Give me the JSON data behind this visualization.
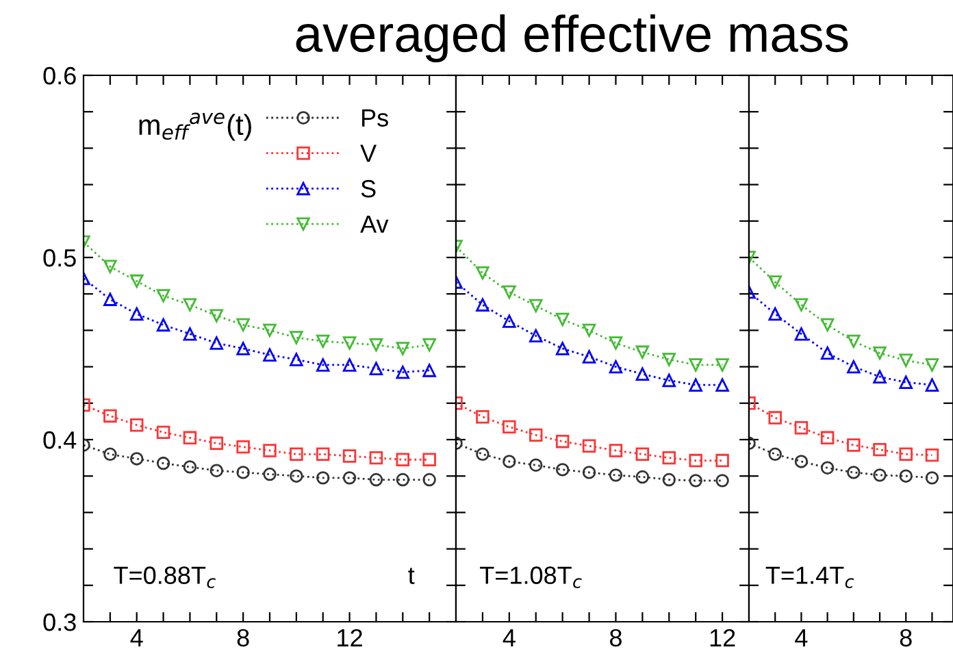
{
  "chart_data": [
    {
      "type": "line",
      "title": "averaged effective mass",
      "x": [
        2,
        3,
        4,
        5,
        6,
        7,
        8,
        9,
        10,
        11,
        12,
        13,
        14,
        15
      ],
      "xlim": [
        2,
        16
      ],
      "ylim": [
        0.3,
        0.6
      ],
      "xticks": [
        {
          "value": 3,
          "label": null
        },
        4,
        {
          "value": 5,
          "label": null
        },
        {
          "value": 6,
          "label": null
        },
        {
          "value": 7,
          "label": null
        },
        8,
        {
          "value": 9,
          "label": null
        },
        {
          "value": 10,
          "label": null
        },
        {
          "value": 11,
          "label": null
        },
        12,
        {
          "value": 13,
          "label": null
        },
        {
          "value": 14,
          "label": null
        },
        {
          "value": 15,
          "label": null
        }
      ],
      "yticks": [
        0.3,
        {
          "value": 0.32,
          "label": null
        },
        {
          "value": 0.34,
          "label": null
        },
        {
          "value": 0.36,
          "label": null
        },
        {
          "value": 0.38,
          "label": null
        },
        0.4,
        {
          "value": 0.42,
          "label": null
        },
        {
          "value": 0.44,
          "label": null
        },
        {
          "value": 0.46,
          "label": null
        },
        {
          "value": 0.48,
          "label": null
        },
        0.5,
        {
          "value": 0.52,
          "label": null
        },
        {
          "value": 0.54,
          "label": null
        },
        {
          "value": 0.56,
          "label": null
        },
        {
          "value": 0.58,
          "label": null
        },
        0.6
      ],
      "legend": "top right",
      "line_style": "dotted",
      "grid": false,
      "annotations": [
        {
          "text": "m$_{eff}$$^{ave}$(t)"
        },
        {
          "text": "T=0.88T$_{c}$"
        },
        {
          "text": "t"
        }
      ],
      "series": [
        {
          "name": "Ps",
          "color": "#333333",
          "marker": "circle",
          "values": [
            0.397,
            0.392,
            0.3895,
            0.387,
            0.385,
            0.383,
            0.382,
            0.381,
            0.38,
            0.379,
            0.379,
            0.378,
            0.378,
            0.378
          ]
        },
        {
          "name": "V",
          "color": "#ff3333",
          "marker": "square",
          "values": [
            0.419,
            0.413,
            0.408,
            0.404,
            0.401,
            0.398,
            0.396,
            0.394,
            0.392,
            0.392,
            0.391,
            0.39,
            0.389,
            0.389
          ]
        },
        {
          "name": "S",
          "color": "#0000ff",
          "marker": "triangle",
          "values": [
            0.4885,
            0.477,
            0.469,
            0.463,
            0.458,
            0.453,
            0.45,
            0.4465,
            0.444,
            0.441,
            0.441,
            0.439,
            0.437,
            0.438
          ]
        },
        {
          "name": "Av",
          "color": "#44bb33",
          "marker": "triangle_down",
          "values": [
            0.5085,
            0.495,
            0.487,
            0.479,
            0.474,
            0.468,
            0.463,
            0.46,
            0.456,
            0.454,
            0.453,
            0.452,
            0.45,
            0.452
          ]
        }
      ]
    },
    {
      "type": "line",
      "x": [
        2,
        3,
        4,
        5,
        6,
        7,
        8,
        9,
        10,
        11,
        12
      ],
      "xlim": [
        2,
        13
      ],
      "ylim": [
        0.3,
        0.6
      ],
      "tick_labels": "x",
      "xticks": [
        {
          "value": 3,
          "label": null
        },
        4,
        {
          "value": 5,
          "label": null
        },
        {
          "value": 6,
          "label": null
        },
        {
          "value": 7,
          "label": null
        },
        8,
        {
          "value": 9,
          "label": null
        },
        {
          "value": 10,
          "label": null
        },
        {
          "value": 11,
          "label": null
        },
        12
      ],
      "yticks": [
        0.3,
        {
          "value": 0.32,
          "label": null
        },
        {
          "value": 0.34,
          "label": null
        },
        {
          "value": 0.36,
          "label": null
        },
        {
          "value": 0.38,
          "label": null
        },
        0.4,
        {
          "value": 0.42,
          "label": null
        },
        {
          "value": 0.44,
          "label": null
        },
        {
          "value": 0.46,
          "label": null
        },
        {
          "value": 0.48,
          "label": null
        },
        0.5,
        {
          "value": 0.52,
          "label": null
        },
        {
          "value": 0.54,
          "label": null
        },
        {
          "value": 0.56,
          "label": null
        },
        {
          "value": 0.58,
          "label": null
        },
        0.6
      ],
      "line_style": "dotted",
      "grid": false,
      "annotations": [
        {
          "text": "T=1.08T$_{c}$"
        }
      ],
      "series": [
        {
          "color": "#333333",
          "marker": "circle",
          "values": [
            0.398,
            0.392,
            0.388,
            0.386,
            0.3835,
            0.382,
            0.3805,
            0.3795,
            0.378,
            0.3775,
            0.3775
          ]
        },
        {
          "color": "#ff3333",
          "marker": "square",
          "values": [
            0.42,
            0.4125,
            0.407,
            0.4025,
            0.399,
            0.3965,
            0.394,
            0.392,
            0.39,
            0.3885,
            0.3885
          ]
        },
        {
          "color": "#0000ff",
          "marker": "triangle",
          "values": [
            0.4865,
            0.474,
            0.465,
            0.457,
            0.45,
            0.4455,
            0.44,
            0.436,
            0.4325,
            0.43,
            0.43
          ]
        },
        {
          "color": "#44bb33",
          "marker": "triangle_down",
          "values": [
            0.506,
            0.4915,
            0.481,
            0.4735,
            0.466,
            0.46,
            0.453,
            0.448,
            0.444,
            0.441,
            0.441
          ]
        }
      ]
    },
    {
      "type": "line",
      "x": [
        2,
        3,
        4,
        5,
        6,
        7,
        8,
        9
      ],
      "xlim": [
        2,
        9.8
      ],
      "ylim": [
        0.3,
        0.6
      ],
      "tick_labels": "x",
      "xticks": [
        {
          "value": 3,
          "label": null
        },
        4,
        {
          "value": 5,
          "label": null
        },
        {
          "value": 6,
          "label": null
        },
        {
          "value": 7,
          "label": null
        },
        8,
        {
          "value": 9,
          "label": null
        }
      ],
      "yticks": [
        0.3,
        {
          "value": 0.32,
          "label": null
        },
        {
          "value": 0.34,
          "label": null
        },
        {
          "value": 0.36,
          "label": null
        },
        {
          "value": 0.38,
          "label": null
        },
        0.4,
        {
          "value": 0.42,
          "label": null
        },
        {
          "value": 0.44,
          "label": null
        },
        {
          "value": 0.46,
          "label": null
        },
        {
          "value": 0.48,
          "label": null
        },
        0.5,
        {
          "value": 0.52,
          "label": null
        },
        {
          "value": 0.54,
          "label": null
        },
        {
          "value": 0.56,
          "label": null
        },
        {
          "value": 0.58,
          "label": null
        },
        0.6
      ],
      "line_style": "dotted",
      "grid": false,
      "annotations": [
        {
          "text": "T=1.4T$_{c}$"
        }
      ],
      "series": [
        {
          "color": "#333333",
          "marker": "circle",
          "values": [
            0.398,
            0.392,
            0.388,
            0.3845,
            0.382,
            0.3805,
            0.38,
            0.379
          ]
        },
        {
          "color": "#ff3333",
          "marker": "square",
          "values": [
            0.42,
            0.412,
            0.4065,
            0.401,
            0.397,
            0.3945,
            0.392,
            0.3915
          ]
        },
        {
          "color": "#0000ff",
          "marker": "triangle",
          "values": [
            0.481,
            0.469,
            0.458,
            0.4475,
            0.44,
            0.4345,
            0.4315,
            0.43
          ]
        },
        {
          "color": "#44bb33",
          "marker": "triangle_down",
          "values": [
            0.5,
            0.4865,
            0.474,
            0.463,
            0.454,
            0.4475,
            0.4435,
            0.441
          ]
        }
      ]
    }
  ]
}
